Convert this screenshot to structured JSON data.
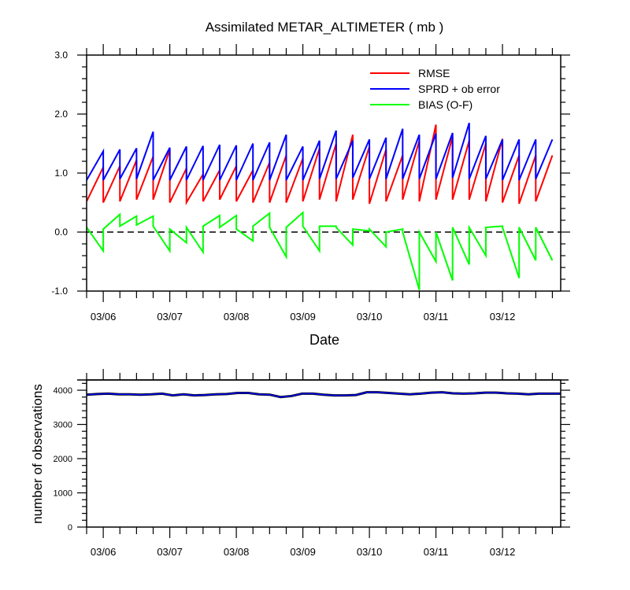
{
  "figure": {
    "title": "Assimilated METAR_ALTIMETER ( mb )"
  },
  "chart_data": [
    {
      "type": "line",
      "title": "Assimilated METAR_ALTIMETER ( mb )",
      "xlabel": "Date",
      "ylabel": "",
      "ylim": [
        -1.0,
        3.0
      ],
      "yticks": [
        "-1.0",
        "0.0",
        "1.0",
        "2.0",
        "3.0"
      ],
      "xlim": [
        "03/05 18Z",
        "03/12 21Z"
      ],
      "xticks": [
        "03/06",
        "03/07",
        "03/08",
        "03/09",
        "03/10",
        "03/11",
        "03/12"
      ],
      "grid": false,
      "legend_position": "top-right",
      "zero_line": "dashed",
      "series": [
        {
          "name": "RMSE",
          "color": "#ff0000",
          "prior": [
            0.52,
            0.5,
            0.52,
            0.55,
            0.55,
            0.5,
            0.5,
            0.52,
            0.55,
            0.52,
            0.5,
            0.5,
            0.5,
            0.52,
            0.55,
            0.52,
            0.55,
            0.48,
            0.52,
            0.55,
            0.52,
            0.55,
            0.55,
            0.55,
            0.52,
            0.5,
            0.48,
            0.52
          ],
          "posterior": [
            1.1,
            1.12,
            1.22,
            1.28,
            1.4,
            1.08,
            0.98,
            1.05,
            1.12,
            1.05,
            1.18,
            1.3,
            1.25,
            1.42,
            1.5,
            1.65,
            1.45,
            1.4,
            1.3,
            1.55,
            1.82,
            1.62,
            1.55,
            1.5,
            1.58,
            1.3,
            1.3,
            1.3
          ]
        },
        {
          "name": "SPRD + ob error",
          "color": "#0000ff",
          "prior": [
            0.88,
            0.88,
            0.9,
            0.9,
            0.88,
            0.88,
            0.88,
            0.88,
            0.88,
            0.88,
            0.88,
            0.88,
            0.88,
            0.88,
            0.9,
            0.9,
            0.92,
            0.9,
            0.9,
            0.9,
            0.9,
            0.9,
            0.92,
            0.9,
            0.9,
            0.88,
            0.88,
            0.9
          ],
          "posterior": [
            1.37,
            1.4,
            1.42,
            1.7,
            1.43,
            1.45,
            1.46,
            1.48,
            1.47,
            1.5,
            1.52,
            1.65,
            1.45,
            1.55,
            1.72,
            1.55,
            1.57,
            1.6,
            1.75,
            1.65,
            1.67,
            1.68,
            1.85,
            1.63,
            1.57,
            1.57,
            1.57,
            1.57
          ]
        },
        {
          "name": "BIAS (O-F)",
          "color": "#00ff00",
          "prior": [
            0.08,
            0.05,
            0.1,
            0.12,
            0.1,
            0.05,
            0.08,
            0.1,
            0.08,
            0.05,
            0.1,
            0.08,
            0.08,
            0.1,
            0.1,
            0.08,
            0.05,
            0.05,
            0.0,
            0.0,
            0.0,
            0.0,
            0.08,
            0.08,
            0.08,
            0.08,
            0.08,
            0.08
          ],
          "posterior": [
            -0.32,
            0.3,
            0.27,
            0.27,
            -0.32,
            -0.18,
            -0.34,
            0.28,
            0.28,
            -0.15,
            0.32,
            -0.42,
            0.33,
            -0.32,
            0.1,
            -0.22,
            0.02,
            -0.25,
            0.05,
            -0.98,
            -0.5,
            -0.82,
            -0.55,
            -0.4,
            0.1,
            -0.78,
            -0.48,
            -0.48
          ]
        }
      ]
    },
    {
      "type": "line",
      "title": "",
      "xlabel": "",
      "ylabel": "number of observations",
      "ylim": [
        0,
        4300
      ],
      "yticks": [
        "0",
        "1000",
        "2000",
        "3000",
        "4000"
      ],
      "xlim": [
        "03/05 18Z",
        "03/12 21Z"
      ],
      "xticks": [
        "03/06",
        "03/07",
        "03/08",
        "03/09",
        "03/10",
        "03/11",
        "03/12"
      ],
      "grid": false,
      "series": [
        {
          "color": "#0000ff",
          "values": [
            3870,
            3890,
            3900,
            3880,
            3880,
            3870,
            3880,
            3900,
            3850,
            3880,
            3850,
            3860,
            3880,
            3890,
            3920,
            3920,
            3880,
            3870,
            3800,
            3830,
            3900,
            3900,
            3870,
            3850,
            3850,
            3860,
            3940,
            3940,
            3920,
            3900,
            3880,
            3900,
            3930,
            3940,
            3910,
            3900,
            3910,
            3930,
            3930,
            3910,
            3900,
            3880,
            3900,
            3900,
            3900
          ]
        }
      ]
    }
  ]
}
